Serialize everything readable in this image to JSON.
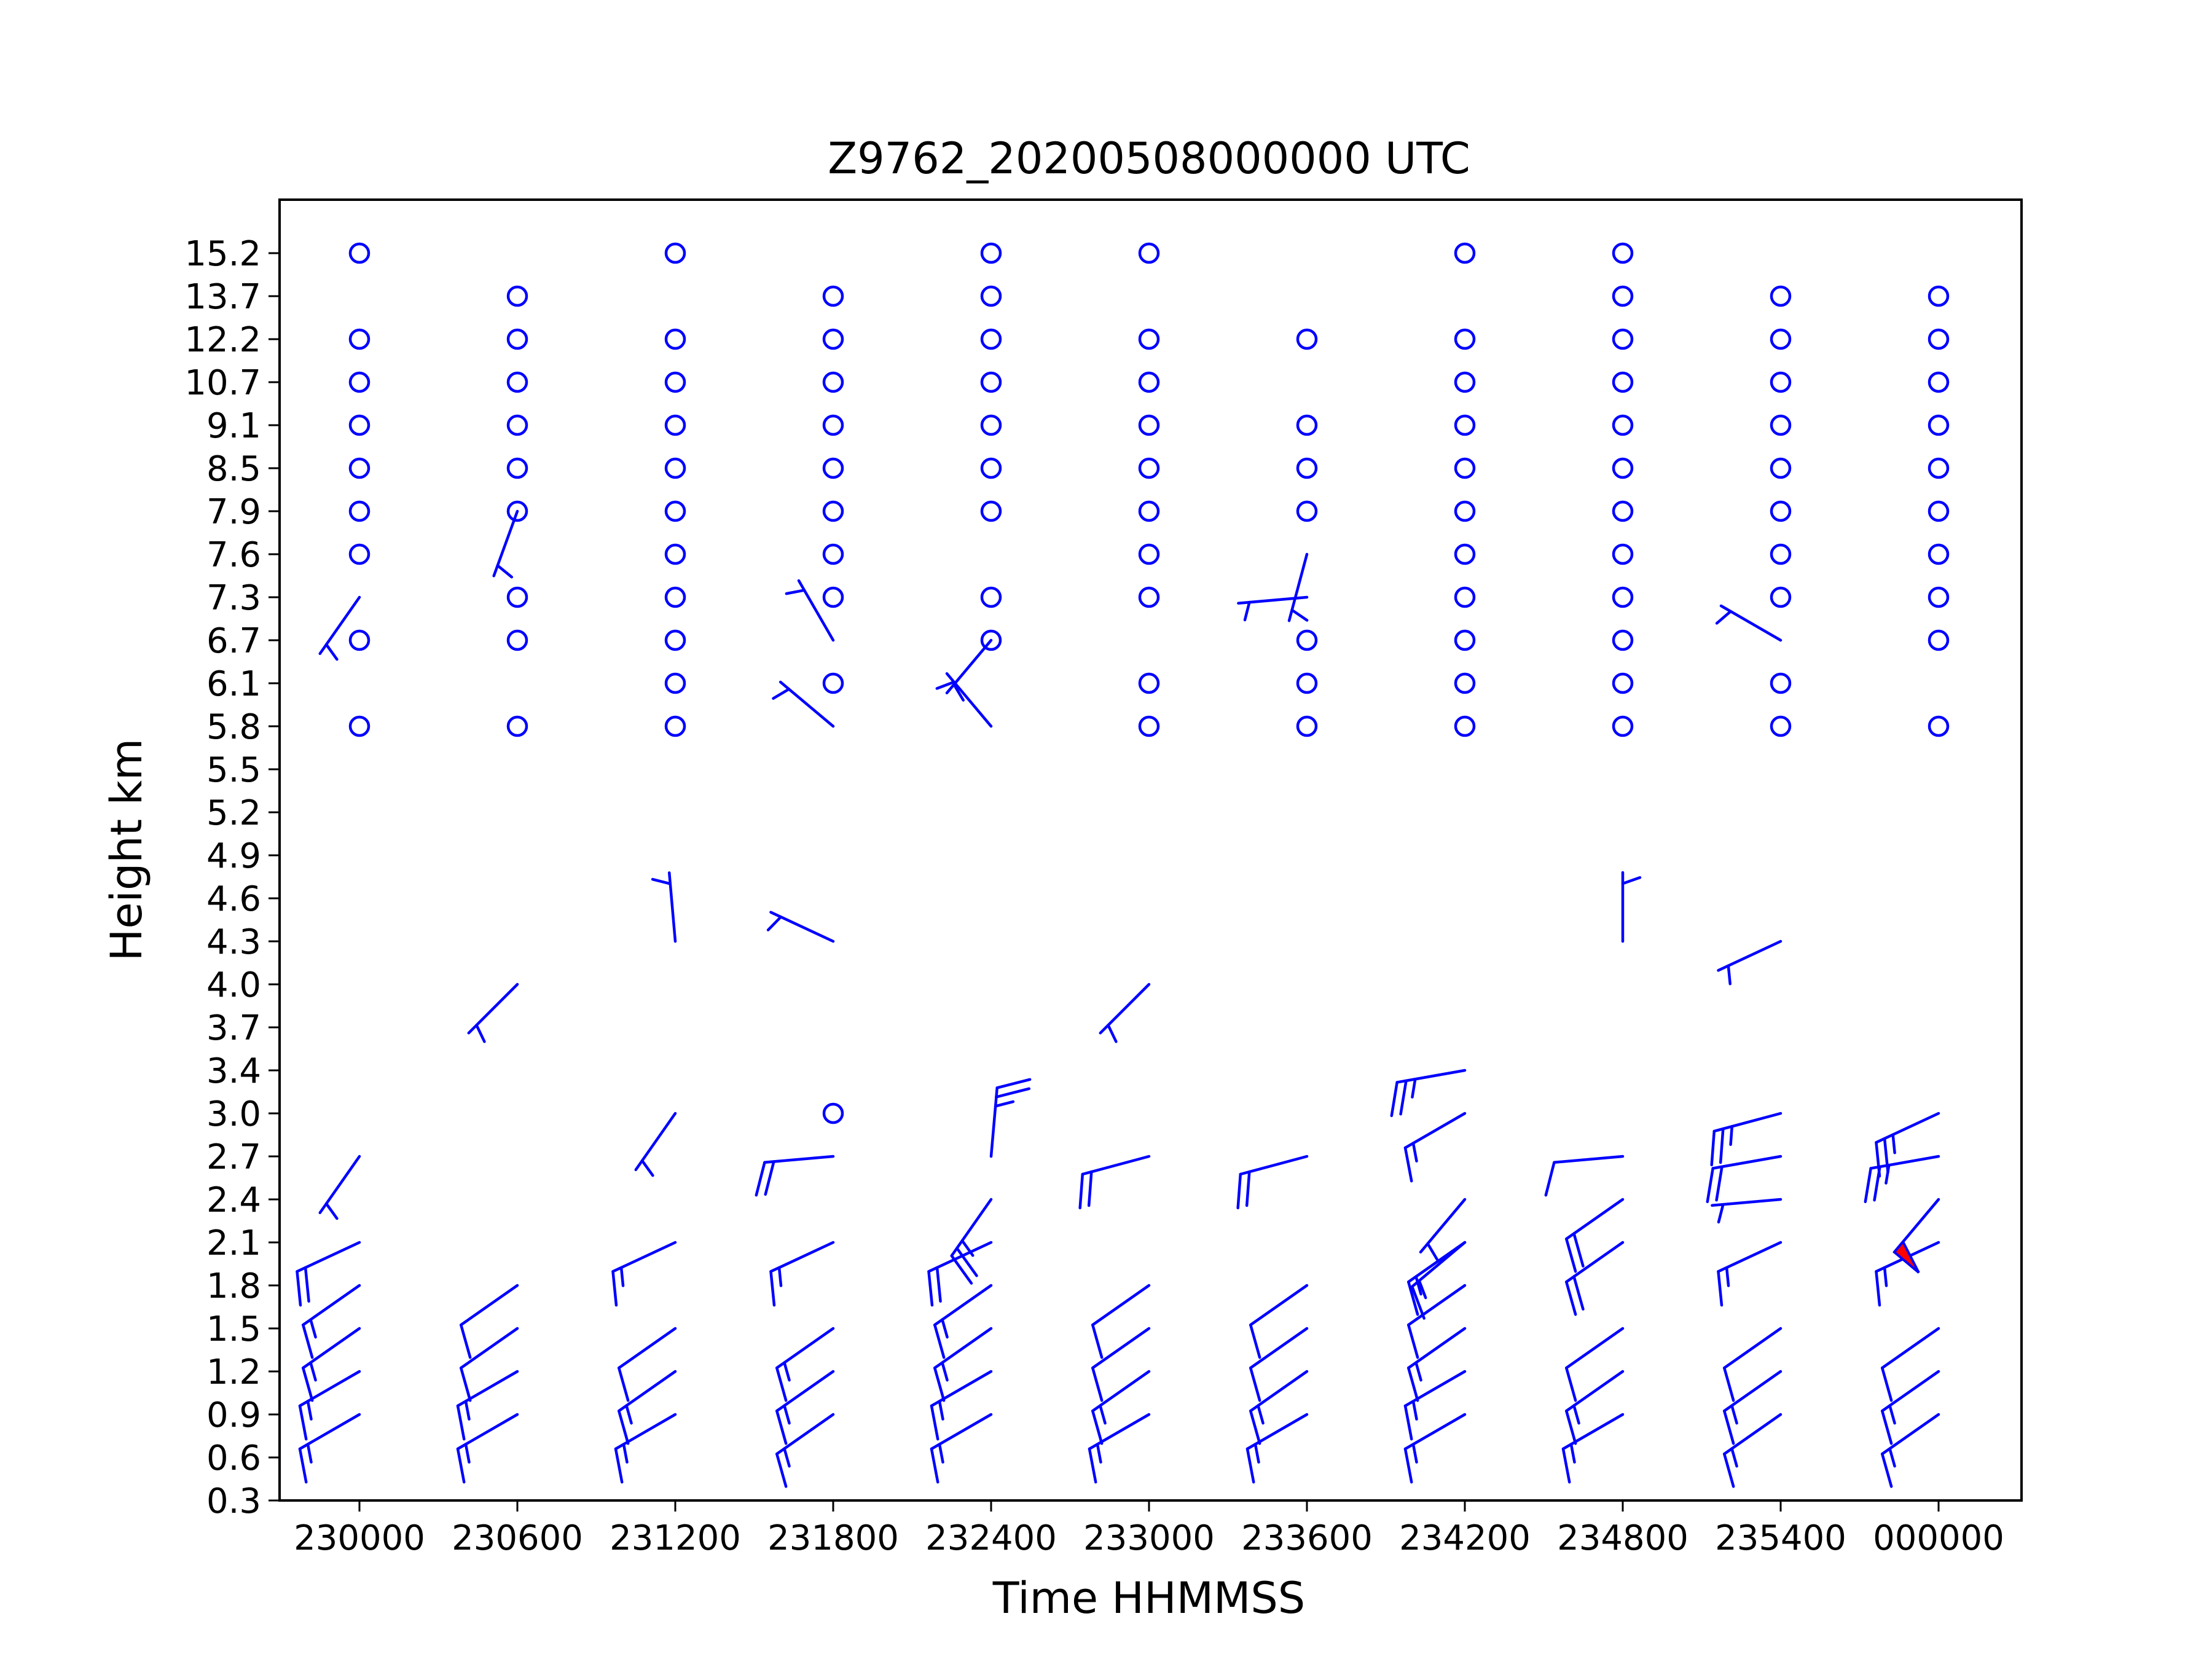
{
  "chart_data": {
    "type": "wind_barb",
    "title": "Z9762_20200508000000 UTC",
    "xlabel": "Time HHMMSS",
    "ylabel": "Height km",
    "x_ticks": [
      "230000",
      "230600",
      "231200",
      "231800",
      "232400",
      "233000",
      "233600",
      "234200",
      "234800",
      "235400",
      "000000"
    ],
    "y_ticks": [
      "0.3",
      "0.6",
      "0.9",
      "1.2",
      "1.5",
      "1.8",
      "2.1",
      "2.4",
      "2.7",
      "3.0",
      "3.4",
      "3.7",
      "4.0",
      "4.3",
      "4.6",
      "4.9",
      "5.2",
      "5.5",
      "5.8",
      "6.1",
      "6.7",
      "7.3",
      "7.6",
      "7.9",
      "8.5",
      "9.1",
      "10.7",
      "12.2",
      "13.7",
      "15.2"
    ],
    "barb_color": "#0000ff",
    "flag_color": "#ff0000",
    "columns": [
      {
        "time": "230000",
        "calm": [
          "5.8",
          "6.7",
          "7.6",
          "7.9",
          "8.5",
          "9.1",
          "10.7",
          "12.2",
          "15.2"
        ],
        "barbs": [
          [
            "0.9",
            240,
            16
          ],
          [
            "1.2",
            240,
            16
          ],
          [
            "1.5",
            235,
            16
          ],
          [
            "1.8",
            235,
            16
          ],
          [
            "2.1",
            245,
            22
          ],
          [
            "2.7",
            215,
            8
          ],
          [
            "7.3",
            215,
            6
          ]
        ]
      },
      {
        "time": "230600",
        "calm": [
          "5.8",
          "6.7",
          "7.3",
          "7.9",
          "8.5",
          "9.1",
          "10.7",
          "12.2",
          "13.7"
        ],
        "barbs": [
          [
            "0.9",
            240,
            16
          ],
          [
            "1.2",
            240,
            16
          ],
          [
            "1.5",
            235,
            12
          ],
          [
            "1.8",
            235,
            12
          ],
          [
            "4.0",
            225,
            6
          ],
          [
            "7.9",
            200,
            6
          ]
        ]
      },
      {
        "time": "231200",
        "calm": [
          "5.8",
          "6.1",
          "6.7",
          "7.3",
          "7.6",
          "7.9",
          "8.5",
          "9.1",
          "10.7",
          "12.2",
          "15.2"
        ],
        "barbs": [
          [
            "0.9",
            240,
            16
          ],
          [
            "1.2",
            235,
            16
          ],
          [
            "1.5",
            235,
            12
          ],
          [
            "2.1",
            245,
            16
          ],
          [
            "3.0",
            215,
            8
          ],
          [
            "4.3",
            355,
            6
          ]
        ]
      },
      {
        "time": "231800",
        "calm": [
          "3.0",
          "6.1",
          "7.3",
          "7.6",
          "7.9",
          "8.5",
          "9.1",
          "10.7",
          "12.2",
          "13.7"
        ],
        "barbs": [
          [
            "0.9",
            235,
            16
          ],
          [
            "1.2",
            235,
            16
          ],
          [
            "1.5",
            235,
            16
          ],
          [
            "2.1",
            245,
            16
          ],
          [
            "2.7",
            265,
            22
          ],
          [
            "4.3",
            295,
            6
          ],
          [
            "5.8",
            310,
            6
          ],
          [
            "6.7",
            330,
            6
          ]
        ]
      },
      {
        "time": "232400",
        "calm": [
          "6.7",
          "7.3",
          "7.9",
          "8.5",
          "9.1",
          "10.7",
          "12.2",
          "13.7",
          "15.2"
        ],
        "barbs": [
          [
            "0.9",
            240,
            16
          ],
          [
            "1.2",
            240,
            16
          ],
          [
            "1.5",
            235,
            16
          ],
          [
            "1.8",
            235,
            16
          ],
          [
            "2.1",
            245,
            22
          ],
          [
            "2.4",
            215,
            26
          ],
          [
            "2.7",
            5,
            26
          ],
          [
            "5.8",
            320,
            6
          ],
          [
            "6.7",
            220,
            6
          ]
        ]
      },
      {
        "time": "233000",
        "calm": [
          "5.8",
          "6.1",
          "7.3",
          "7.6",
          "7.9",
          "8.5",
          "9.1",
          "10.7",
          "12.2",
          "15.2"
        ],
        "barbs": [
          [
            "0.9",
            240,
            16
          ],
          [
            "1.2",
            235,
            16
          ],
          [
            "1.5",
            235,
            12
          ],
          [
            "1.8",
            235,
            12
          ],
          [
            "2.7",
            255,
            22
          ],
          [
            "4.0",
            225,
            6
          ]
        ]
      },
      {
        "time": "233600",
        "calm": [
          "5.8",
          "6.1",
          "6.7",
          "7.9",
          "8.5",
          "9.1",
          "12.2"
        ],
        "barbs": [
          [
            "0.9",
            240,
            16
          ],
          [
            "1.2",
            235,
            16
          ],
          [
            "1.5",
            235,
            12
          ],
          [
            "1.8",
            235,
            12
          ],
          [
            "2.7",
            255,
            22
          ],
          [
            "7.3",
            265,
            6
          ],
          [
            "7.6",
            195,
            8
          ]
        ]
      },
      {
        "time": "234200",
        "calm": [
          "5.8",
          "6.1",
          "6.7",
          "7.3",
          "7.6",
          "7.9",
          "8.5",
          "9.1",
          "10.7",
          "12.2",
          "15.2"
        ],
        "barbs": [
          [
            "0.9",
            240,
            16
          ],
          [
            "1.2",
            240,
            16
          ],
          [
            "1.5",
            235,
            16
          ],
          [
            "1.8",
            235,
            12
          ],
          [
            "2.1",
            230,
            16
          ],
          [
            "2.1",
            235,
            16
          ],
          [
            "2.4",
            220,
            4
          ],
          [
            "3.0",
            240,
            16
          ],
          [
            "3.4",
            260,
            26
          ]
        ]
      },
      {
        "time": "234800",
        "calm": [
          "5.8",
          "6.1",
          "6.7",
          "7.3",
          "7.6",
          "7.9",
          "8.5",
          "9.1",
          "10.7",
          "12.2",
          "13.7",
          "15.2"
        ],
        "barbs": [
          [
            "0.9",
            240,
            16
          ],
          [
            "1.2",
            235,
            16
          ],
          [
            "1.5",
            235,
            12
          ],
          [
            "2.1",
            235,
            22
          ],
          [
            "2.4",
            235,
            22
          ],
          [
            "2.7",
            265,
            12
          ],
          [
            "4.3",
            0,
            6
          ]
        ]
      },
      {
        "time": "235400",
        "calm": [
          "5.8",
          "6.1",
          "7.3",
          "7.6",
          "7.9",
          "8.5",
          "9.1",
          "10.7",
          "12.2",
          "13.7"
        ],
        "barbs": [
          [
            "0.9",
            235,
            16
          ],
          [
            "1.2",
            235,
            16
          ],
          [
            "1.5",
            235,
            12
          ],
          [
            "2.1",
            245,
            16
          ],
          [
            "2.4",
            265,
            6
          ],
          [
            "2.7",
            260,
            22
          ],
          [
            "3.0",
            255,
            26
          ],
          [
            "4.3",
            245,
            6
          ],
          [
            "6.7",
            300,
            6
          ]
        ]
      },
      {
        "time": "000000",
        "calm": [
          "6.7",
          "7.3",
          "7.6",
          "7.9",
          "8.5",
          "9.1",
          "10.7",
          "12.2",
          "13.7",
          "5.8"
        ],
        "barbs": [
          [
            "0.9",
            235,
            16
          ],
          [
            "1.2",
            235,
            16
          ],
          [
            "1.5",
            235,
            12
          ],
          [
            "2.1",
            245,
            16
          ],
          [
            "2.4",
            220,
            52
          ],
          [
            "2.7",
            260,
            26
          ],
          [
            "3.0",
            245,
            26
          ]
        ]
      }
    ]
  }
}
